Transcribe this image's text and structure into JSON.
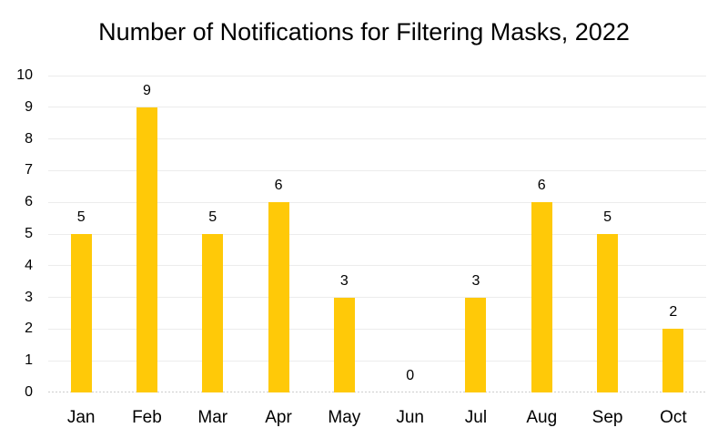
{
  "chart_data": {
    "type": "bar",
    "title": "Number of Notifications for Filtering Masks, 2022",
    "categories": [
      "Jan",
      "Feb",
      "Mar",
      "Apr",
      "May",
      "Jun",
      "Jul",
      "Aug",
      "Sep",
      "Oct"
    ],
    "values": [
      5,
      9,
      5,
      6,
      3,
      0,
      3,
      6,
      5,
      2
    ],
    "xlabel": "",
    "ylabel": "",
    "ylim": [
      0,
      10
    ],
    "yticks": [
      0,
      1,
      2,
      3,
      4,
      5,
      6,
      7,
      8,
      9,
      10
    ],
    "data_labels_shown": true,
    "grid": "horizontal",
    "legend": false,
    "colors": {
      "bar": "#FFC908",
      "gridline": "#ECECEC",
      "axis_line": "#CDCDCD",
      "text": "#000000",
      "background": "#FFFFFF"
    }
  }
}
